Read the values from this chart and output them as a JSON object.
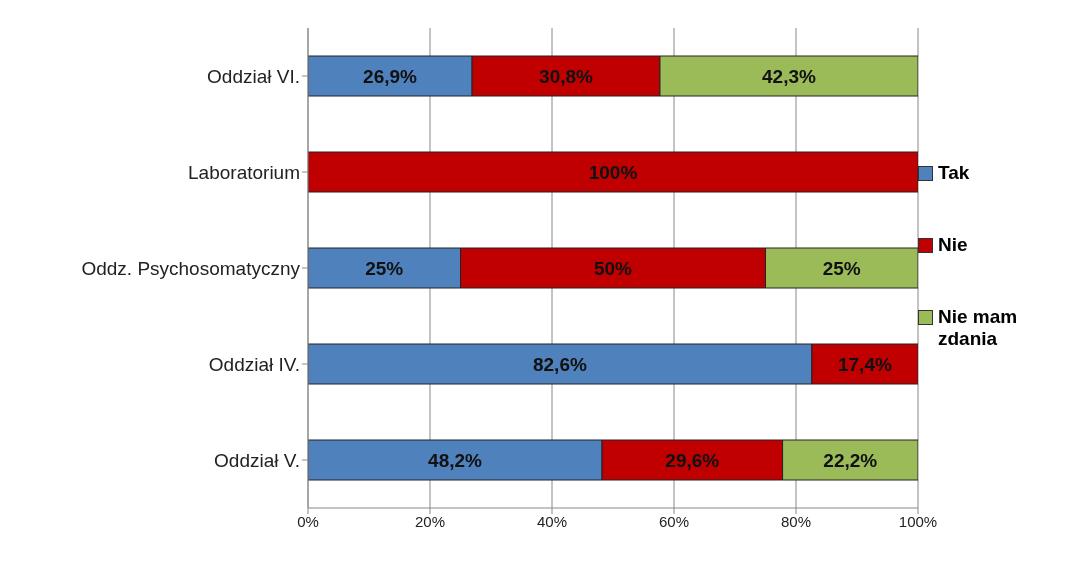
{
  "chart_data": {
    "type": "bar",
    "orientation": "horizontal",
    "stacked": true,
    "categories": [
      "Oddział VI.",
      "Laboratorium",
      "Oddz. Psychosomatyczny",
      "Oddział IV.",
      "Oddział V."
    ],
    "series": [
      {
        "name": "Tak",
        "color": "#4f81bd",
        "values": [
          26.9,
          null,
          25,
          82.6,
          48.2
        ],
        "value_labels": [
          "26,9%",
          null,
          "25%",
          "82,6%",
          "48,2%"
        ]
      },
      {
        "name": "Nie",
        "color": "#c00000",
        "values": [
          30.8,
          100,
          50,
          17.4,
          29.6
        ],
        "value_labels": [
          "30,8%",
          "100%",
          "50%",
          "17,4%",
          "29,6%"
        ]
      },
      {
        "name": "Nie mam zdania",
        "color": "#9bbb59",
        "values": [
          42.3,
          null,
          25,
          null,
          22.2
        ],
        "value_labels": [
          "42,3%",
          null,
          "25%",
          null,
          "22,2%"
        ]
      }
    ],
    "xlim": [
      0,
      100
    ],
    "xticks": [
      {
        "value": 0,
        "label": "0%"
      },
      {
        "value": 20,
        "label": "20%"
      },
      {
        "value": 40,
        "label": "40%"
      },
      {
        "value": 60,
        "label": "60%"
      },
      {
        "value": 80,
        "label": "80%"
      },
      {
        "value": 100,
        "label": "100%"
      }
    ],
    "grid": "x",
    "legend": "right"
  }
}
